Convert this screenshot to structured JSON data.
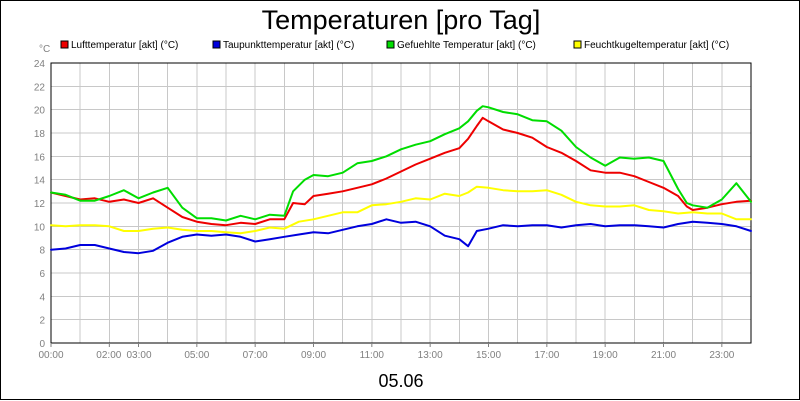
{
  "chart_data": {
    "type": "line",
    "title": "Temperaturen [pro Tag]",
    "y_unit": "°C",
    "date_label": "05.06",
    "ylim": [
      0,
      24
    ],
    "y_ticks": [
      0,
      2,
      4,
      6,
      8,
      10,
      12,
      14,
      16,
      18,
      20,
      22,
      24
    ],
    "x_range_hours": [
      0,
      24
    ],
    "x_ticks": [
      {
        "h": 0,
        "label": "00:00"
      },
      {
        "h": 2,
        "label": "02:00"
      },
      {
        "h": 3,
        "label": "03:00"
      },
      {
        "h": 5,
        "label": "05:00"
      },
      {
        "h": 7,
        "label": "07:00"
      },
      {
        "h": 9,
        "label": "09:00"
      },
      {
        "h": 11,
        "label": "11:00"
      },
      {
        "h": 13,
        "label": "13:00"
      },
      {
        "h": 15,
        "label": "15:00"
      },
      {
        "h": 17,
        "label": "17:00"
      },
      {
        "h": 19,
        "label": "19:00"
      },
      {
        "h": 21,
        "label": "21:00"
      },
      {
        "h": 23,
        "label": "23:00"
      }
    ],
    "grid": true,
    "legend_position": "top",
    "series": [
      {
        "name": "Lufttemperatur [akt] (°C)",
        "color": "#ee0000",
        "points": [
          [
            0,
            12.9
          ],
          [
            0.5,
            12.6
          ],
          [
            1,
            12.3
          ],
          [
            1.5,
            12.4
          ],
          [
            2,
            12.1
          ],
          [
            2.5,
            12.3
          ],
          [
            3,
            12.0
          ],
          [
            3.5,
            12.4
          ],
          [
            4,
            11.6
          ],
          [
            4.5,
            10.8
          ],
          [
            5,
            10.4
          ],
          [
            5.5,
            10.2
          ],
          [
            6,
            10.1
          ],
          [
            6.5,
            10.3
          ],
          [
            7,
            10.2
          ],
          [
            7.5,
            10.6
          ],
          [
            8,
            10.6
          ],
          [
            8.3,
            12.0
          ],
          [
            8.7,
            11.9
          ],
          [
            9,
            12.6
          ],
          [
            9.5,
            12.8
          ],
          [
            10,
            13.0
          ],
          [
            10.5,
            13.3
          ],
          [
            11,
            13.6
          ],
          [
            11.5,
            14.1
          ],
          [
            12,
            14.7
          ],
          [
            12.5,
            15.3
          ],
          [
            13,
            15.8
          ],
          [
            13.5,
            16.3
          ],
          [
            14,
            16.7
          ],
          [
            14.3,
            17.5
          ],
          [
            14.6,
            18.6
          ],
          [
            14.8,
            19.3
          ],
          [
            15,
            19.0
          ],
          [
            15.5,
            18.3
          ],
          [
            16,
            18.0
          ],
          [
            16.5,
            17.6
          ],
          [
            17,
            16.8
          ],
          [
            17.5,
            16.3
          ],
          [
            18,
            15.6
          ],
          [
            18.5,
            14.8
          ],
          [
            19,
            14.6
          ],
          [
            19.5,
            14.6
          ],
          [
            20,
            14.3
          ],
          [
            20.5,
            13.8
          ],
          [
            21,
            13.3
          ],
          [
            21.5,
            12.6
          ],
          [
            21.8,
            11.7
          ],
          [
            22,
            11.4
          ],
          [
            22.5,
            11.6
          ],
          [
            23,
            11.9
          ],
          [
            23.5,
            12.1
          ],
          [
            24,
            12.2
          ]
        ]
      },
      {
        "name": "Taupunkttemperatur [akt] (°C)",
        "color": "#0000dd",
        "points": [
          [
            0,
            8.0
          ],
          [
            0.5,
            8.1
          ],
          [
            1,
            8.4
          ],
          [
            1.5,
            8.4
          ],
          [
            2,
            8.1
          ],
          [
            2.5,
            7.8
          ],
          [
            3,
            7.7
          ],
          [
            3.5,
            7.9
          ],
          [
            4,
            8.6
          ],
          [
            4.5,
            9.1
          ],
          [
            5,
            9.3
          ],
          [
            5.5,
            9.2
          ],
          [
            6,
            9.3
          ],
          [
            6.5,
            9.1
          ],
          [
            7,
            8.7
          ],
          [
            7.5,
            8.9
          ],
          [
            8,
            9.1
          ],
          [
            8.5,
            9.3
          ],
          [
            9,
            9.5
          ],
          [
            9.5,
            9.4
          ],
          [
            10,
            9.7
          ],
          [
            10.5,
            10.0
          ],
          [
            11,
            10.2
          ],
          [
            11.5,
            10.6
          ],
          [
            12,
            10.3
          ],
          [
            12.5,
            10.4
          ],
          [
            13,
            10.0
          ],
          [
            13.5,
            9.2
          ],
          [
            14,
            8.9
          ],
          [
            14.3,
            8.3
          ],
          [
            14.6,
            9.6
          ],
          [
            15,
            9.8
          ],
          [
            15.5,
            10.1
          ],
          [
            16,
            10.0
          ],
          [
            16.5,
            10.1
          ],
          [
            17,
            10.1
          ],
          [
            17.5,
            9.9
          ],
          [
            18,
            10.1
          ],
          [
            18.5,
            10.2
          ],
          [
            19,
            10.0
          ],
          [
            19.5,
            10.1
          ],
          [
            20,
            10.1
          ],
          [
            20.5,
            10.0
          ],
          [
            21,
            9.9
          ],
          [
            21.5,
            10.2
          ],
          [
            22,
            10.4
          ],
          [
            22.5,
            10.3
          ],
          [
            23,
            10.2
          ],
          [
            23.5,
            10.0
          ],
          [
            24,
            9.6
          ]
        ]
      },
      {
        "name": "Gefuehlte Temperatur [akt] (°C)",
        "color": "#00dd00",
        "points": [
          [
            0,
            12.9
          ],
          [
            0.5,
            12.7
          ],
          [
            1,
            12.2
          ],
          [
            1.5,
            12.2
          ],
          [
            2,
            12.6
          ],
          [
            2.5,
            13.1
          ],
          [
            3,
            12.4
          ],
          [
            3.5,
            12.9
          ],
          [
            4,
            13.3
          ],
          [
            4.5,
            11.6
          ],
          [
            5,
            10.7
          ],
          [
            5.5,
            10.7
          ],
          [
            6,
            10.5
          ],
          [
            6.5,
            10.9
          ],
          [
            7,
            10.6
          ],
          [
            7.5,
            11.0
          ],
          [
            8,
            10.9
          ],
          [
            8.3,
            13.0
          ],
          [
            8.7,
            14.0
          ],
          [
            9,
            14.4
          ],
          [
            9.5,
            14.3
          ],
          [
            10,
            14.6
          ],
          [
            10.5,
            15.4
          ],
          [
            11,
            15.6
          ],
          [
            11.5,
            16.0
          ],
          [
            12,
            16.6
          ],
          [
            12.5,
            17.0
          ],
          [
            13,
            17.3
          ],
          [
            13.5,
            17.9
          ],
          [
            14,
            18.4
          ],
          [
            14.3,
            19.0
          ],
          [
            14.6,
            19.9
          ],
          [
            14.8,
            20.3
          ],
          [
            15,
            20.2
          ],
          [
            15.5,
            19.8
          ],
          [
            16,
            19.6
          ],
          [
            16.5,
            19.1
          ],
          [
            17,
            19.0
          ],
          [
            17.5,
            18.2
          ],
          [
            18,
            16.8
          ],
          [
            18.5,
            15.9
          ],
          [
            19,
            15.2
          ],
          [
            19.5,
            15.9
          ],
          [
            20,
            15.8
          ],
          [
            20.5,
            15.9
          ],
          [
            21,
            15.6
          ],
          [
            21.5,
            13.2
          ],
          [
            21.8,
            12.0
          ],
          [
            22,
            11.8
          ],
          [
            22.5,
            11.6
          ],
          [
            23,
            12.3
          ],
          [
            23.5,
            13.7
          ],
          [
            24,
            12.1
          ]
        ]
      },
      {
        "name": "Feuchtkugeltemperatur [akt] (°C)",
        "color": "#ffff00",
        "points": [
          [
            0,
            10.1
          ],
          [
            0.5,
            10.0
          ],
          [
            1,
            10.1
          ],
          [
            1.5,
            10.1
          ],
          [
            2,
            10.0
          ],
          [
            2.5,
            9.6
          ],
          [
            3,
            9.6
          ],
          [
            3.5,
            9.8
          ],
          [
            4,
            9.9
          ],
          [
            4.5,
            9.7
          ],
          [
            5,
            9.6
          ],
          [
            5.5,
            9.6
          ],
          [
            6,
            9.5
          ],
          [
            6.5,
            9.4
          ],
          [
            7,
            9.6
          ],
          [
            7.5,
            9.9
          ],
          [
            8,
            9.8
          ],
          [
            8.5,
            10.4
          ],
          [
            9,
            10.6
          ],
          [
            9.5,
            10.9
          ],
          [
            10,
            11.2
          ],
          [
            10.5,
            11.2
          ],
          [
            11,
            11.8
          ],
          [
            11.5,
            11.9
          ],
          [
            12,
            12.1
          ],
          [
            12.5,
            12.4
          ],
          [
            13,
            12.3
          ],
          [
            13.5,
            12.8
          ],
          [
            14,
            12.6
          ],
          [
            14.3,
            12.9
          ],
          [
            14.6,
            13.4
          ],
          [
            15,
            13.3
          ],
          [
            15.5,
            13.1
          ],
          [
            16,
            13.0
          ],
          [
            16.5,
            13.0
          ],
          [
            17,
            13.1
          ],
          [
            17.5,
            12.7
          ],
          [
            18,
            12.1
          ],
          [
            18.5,
            11.8
          ],
          [
            19,
            11.7
          ],
          [
            19.5,
            11.7
          ],
          [
            20,
            11.8
          ],
          [
            20.5,
            11.4
          ],
          [
            21,
            11.3
          ],
          [
            21.5,
            11.1
          ],
          [
            22,
            11.2
          ],
          [
            22.5,
            11.1
          ],
          [
            23,
            11.1
          ],
          [
            23.5,
            10.6
          ],
          [
            24,
            10.6
          ]
        ]
      }
    ]
  }
}
